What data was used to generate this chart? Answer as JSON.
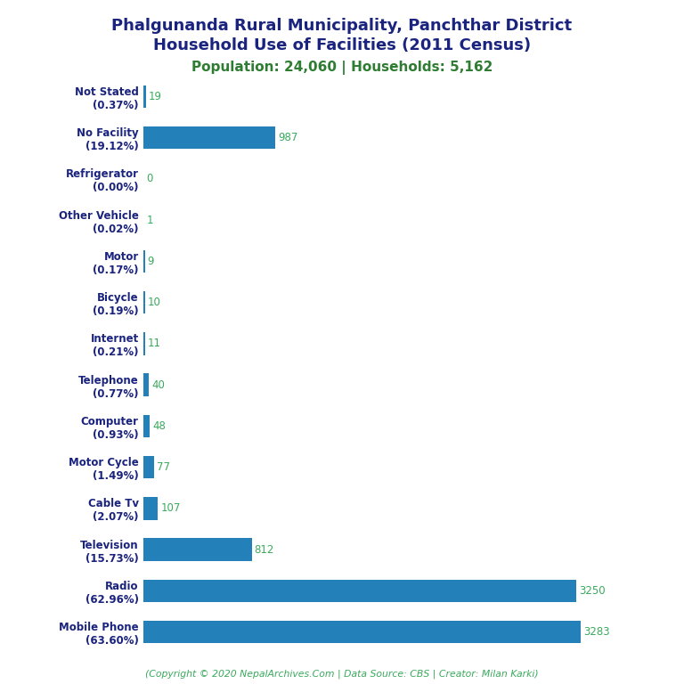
{
  "title_line1": "Phalgunanda Rural Municipality, Panchthar District",
  "title_line2": "Household Use of Facilities (2011 Census)",
  "subtitle": "Population: 24,060 | Households: 5,162",
  "categories": [
    "Not Stated\n(0.37%)",
    "No Facility\n(19.12%)",
    "Refrigerator\n(0.00%)",
    "Other Vehicle\n(0.02%)",
    "Motor\n(0.17%)",
    "Bicycle\n(0.19%)",
    "Internet\n(0.21%)",
    "Telephone\n(0.77%)",
    "Computer\n(0.93%)",
    "Motor Cycle\n(1.49%)",
    "Cable Tv\n(2.07%)",
    "Television\n(15.73%)",
    "Radio\n(62.96%)",
    "Mobile Phone\n(63.60%)"
  ],
  "values": [
    19,
    987,
    0,
    1,
    9,
    10,
    11,
    40,
    48,
    77,
    107,
    812,
    3250,
    3283
  ],
  "bar_color": "#2380b8",
  "value_color": "#3aaa5c",
  "title_color": "#1a237e",
  "subtitle_color": "#2e7d32",
  "footer_color": "#3aaa5c",
  "footer_text": "(Copyright © 2020 NepalArchives.Com | Data Source: CBS | Creator: Milan Karki)",
  "xlim": [
    0,
    3700
  ],
  "background_color": "#ffffff",
  "label_fontsize": 8.5,
  "value_fontsize": 8.5,
  "title_fontsize": 13,
  "subtitle_fontsize": 11
}
